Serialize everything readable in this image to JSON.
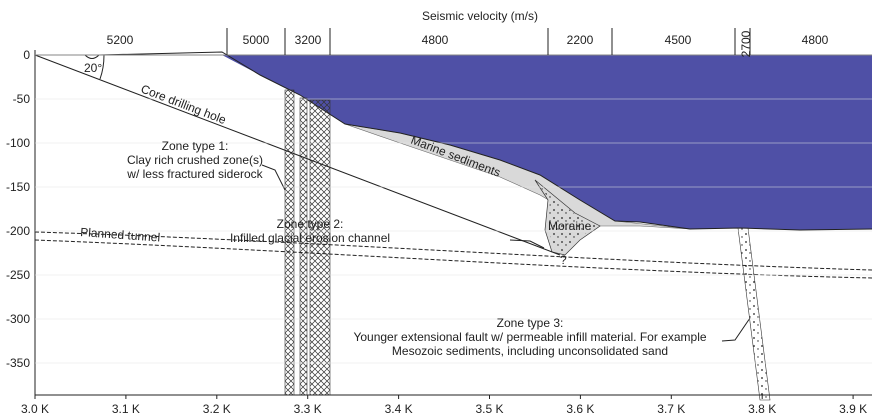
{
  "title": "Seismic velocity (m/s)",
  "velocities": [
    "5200",
    "5000",
    "3200",
    "4800",
    "2200",
    "4500",
    "2700",
    "4800"
  ],
  "x_axis": {
    "ticks": [
      {
        "value": 3000,
        "label": "3.0 K"
      },
      {
        "value": 3100,
        "label": "3.1 K"
      },
      {
        "value": 3200,
        "label": "3.2 K"
      },
      {
        "value": 3300,
        "label": "3.3 K"
      },
      {
        "value": 3400,
        "label": "3.4 K"
      },
      {
        "value": 3500,
        "label": "3.5 K"
      },
      {
        "value": 3600,
        "label": "3.6 K"
      },
      {
        "value": 3700,
        "label": "3.7 K"
      },
      {
        "value": 3800,
        "label": "3.8 K"
      },
      {
        "value": 3900,
        "label": "3.9 K"
      }
    ]
  },
  "y_axis": {
    "ticks": [
      0,
      -50,
      -100,
      -150,
      -200,
      -250,
      -300,
      -350
    ]
  },
  "annotations": {
    "angle": "20°",
    "core_hole": "Core drilling hole",
    "marine": "Marine sediments",
    "moraine": "Moraine",
    "question": "?",
    "tunnel": "Planned tunnel",
    "zone1": [
      "Zone type 1:",
      "Clay rich crushed zone(s)",
      "w/ less fractured siderock"
    ],
    "zone2": [
      "Zone type 2:",
      "Infilled glacial erosion channel"
    ],
    "zone3": [
      "Zone type 3:",
      "Younger extensional fault w/ permeable infill material. For example",
      "Mesozoic sediments, including unconsolidated sand"
    ]
  }
}
